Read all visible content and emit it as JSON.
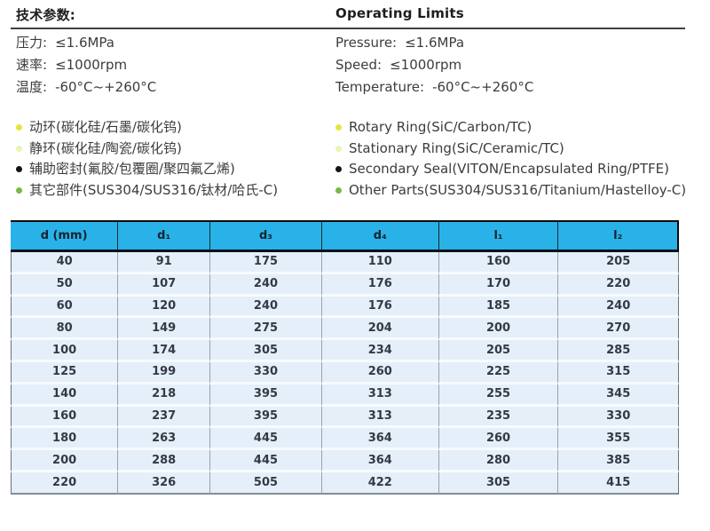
{
  "header": {
    "title_cn": "技术参数:",
    "title_en": "Operating Limits"
  },
  "operating_limits": {
    "cn": [
      {
        "label": "压力:",
        "value": "≤1.6MPa"
      },
      {
        "label": "速率:",
        "value": "≤1000rpm"
      },
      {
        "label": "温度:",
        "value": "-60°C~+260°C"
      }
    ],
    "en": [
      {
        "label": "Pressure:",
        "value": "≤1.6MPa"
      },
      {
        "label": "Speed:",
        "value": "≤1000rpm"
      },
      {
        "label": "Temperature:",
        "value": "-60°C~+260°C"
      }
    ]
  },
  "materials": {
    "cn": [
      {
        "text": "动环(碳化硅/石墨/碳化钨)",
        "bullet": "#e2e63c"
      },
      {
        "text": "静环(碳化硅/陶瓷/碳化钨)",
        "bullet": "#f0f1b6"
      },
      {
        "text": "辅助密封(氟胶/包覆圈/聚四氟乙烯)",
        "bullet": "#141414"
      },
      {
        "text": "其它部件(SUS304/SUS316/钛材/哈氏-C)",
        "bullet": "#7cb843"
      }
    ],
    "en": [
      {
        "text": "Rotary Ring(SiC/Carbon/TC)",
        "bullet": "#e2e63c"
      },
      {
        "text": "Stationary Ring(SiC/Ceramic/TC)",
        "bullet": "#f0f1b6"
      },
      {
        "text": "Secondary Seal(VITON/Encapsulated Ring/PTFE)",
        "bullet": "#141414"
      },
      {
        "text": "Other Parts(SUS304/SUS316/Titanium/Hastelloy-C)",
        "bullet": "#7cb843"
      }
    ]
  },
  "table": {
    "header_bg": "#29b2e7",
    "row_bg": "#e5effa",
    "headers": [
      "d (mm)",
      "d₁",
      "d₃",
      "d₄",
      "l₁",
      "l₂"
    ],
    "rows": [
      [
        "40",
        "91",
        "175",
        "110",
        "160",
        "205"
      ],
      [
        "50",
        "107",
        "240",
        "176",
        "170",
        "220"
      ],
      [
        "60",
        "120",
        "240",
        "176",
        "185",
        "240"
      ],
      [
        "80",
        "149",
        "275",
        "204",
        "200",
        "270"
      ],
      [
        "100",
        "174",
        "305",
        "234",
        "205",
        "285"
      ],
      [
        "125",
        "199",
        "330",
        "260",
        "225",
        "315"
      ],
      [
        "140",
        "218",
        "395",
        "313",
        "255",
        "345"
      ],
      [
        "160",
        "237",
        "395",
        "313",
        "235",
        "330"
      ],
      [
        "180",
        "263",
        "445",
        "364",
        "260",
        "355"
      ],
      [
        "200",
        "288",
        "445",
        "364",
        "280",
        "385"
      ],
      [
        "220",
        "326",
        "505",
        "422",
        "305",
        "415"
      ]
    ]
  }
}
